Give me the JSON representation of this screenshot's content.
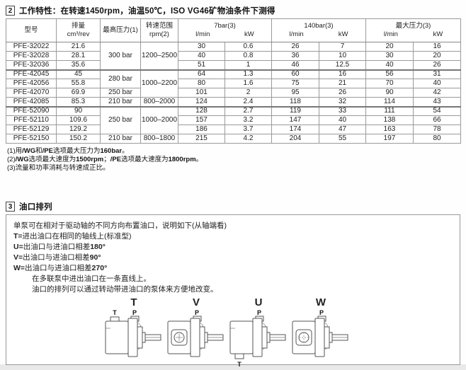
{
  "section2": {
    "number": "2",
    "title": "工作特性：在转速1450rpm，油温50℃，ISO VG46矿物油条件下测得"
  },
  "table": {
    "col_headers": {
      "model": "型号",
      "displacement_line1": "排量",
      "displacement_line2": "cm³/rev",
      "max_pressure": "最高压力(1)",
      "speed_range_line1": "转速范围",
      "speed_range_line2": "rpm(2)",
      "group_7bar": "7bar(3)",
      "group_140bar": "140bar(3)",
      "group_maxp": "最大压力(3)",
      "lmin": "l/min",
      "kw": "kW"
    },
    "rows": [
      {
        "model": "PFE-32022",
        "disp": "21.6",
        "pressure": "300 bar",
        "pressure_span": 3,
        "rpm": "1200–2500",
        "rpm_span": 3,
        "v7": "30",
        "k7": "0.6",
        "v140": "26",
        "k140": "7",
        "vmax": "20",
        "kmax": "16",
        "group_start": false
      },
      {
        "model": "PFE-32028",
        "disp": "28.1",
        "v7": "40",
        "k7": "0.8",
        "v140": "36",
        "k140": "10",
        "vmax": "30",
        "kmax": "20",
        "group_start": false
      },
      {
        "model": "PFE-32036",
        "disp": "35.6",
        "v7": "51",
        "k7": "1",
        "v140": "46",
        "k140": "12.5",
        "vmax": "40",
        "kmax": "26",
        "group_start": false
      },
      {
        "model": "PFE-42045",
        "disp": "45",
        "pressure": "280 bar",
        "pressure_span": 2,
        "rpm": "1000–2200",
        "rpm_span": 3,
        "v7": "64",
        "k7": "1.3",
        "v140": "60",
        "k140": "16",
        "vmax": "56",
        "kmax": "31",
        "group_start": true
      },
      {
        "model": "PFE-42056",
        "disp": "55.8",
        "v7": "80",
        "k7": "1.6",
        "v140": "75",
        "k140": "21",
        "vmax": "70",
        "kmax": "40",
        "group_start": false
      },
      {
        "model": "PFE-42070",
        "disp": "69.9",
        "pressure": "250 bar",
        "pressure_span": 1,
        "v7": "101",
        "k7": "2",
        "v140": "95",
        "k140": "26",
        "vmax": "90",
        "kmax": "42",
        "group_start": false
      },
      {
        "model": "PFE-42085",
        "disp": "85.3",
        "pressure": "210 bar",
        "pressure_span": 1,
        "rpm": "800–2000",
        "rpm_span": 1,
        "v7": "124",
        "k7": "2.4",
        "v140": "118",
        "k140": "32",
        "vmax": "114",
        "kmax": "43",
        "group_start": false
      },
      {
        "model": "PFE-52090",
        "disp": "90",
        "pressure": "250 bar",
        "pressure_span": 3,
        "rpm": "1000–2000",
        "rpm_span": 3,
        "v7": "128",
        "k7": "2.7",
        "v140": "119",
        "k140": "33",
        "vmax": "111",
        "kmax": "54",
        "group_start": true
      },
      {
        "model": "PFE-52110",
        "disp": "109.6",
        "v7": "157",
        "k7": "3.2",
        "v140": "147",
        "k140": "40",
        "vmax": "138",
        "kmax": "66",
        "group_start": false
      },
      {
        "model": "PFE-52129",
        "disp": "129.2",
        "v7": "186",
        "k7": "3.7",
        "v140": "174",
        "k140": "47",
        "vmax": "163",
        "kmax": "78",
        "group_start": false
      },
      {
        "model": "PFE-52150",
        "disp": "150.2",
        "pressure": "210 bar",
        "pressure_span": 1,
        "rpm": "800–1800",
        "rpm_span": 1,
        "v7": "215",
        "k7": "4.2",
        "v140": "204",
        "k140": "55",
        "vmax": "197",
        "kmax": "80",
        "group_start": false
      }
    ]
  },
  "footnotes": [
    [
      {
        "t": "(1)用",
        "b": false
      },
      {
        "t": "/WG",
        "b": true
      },
      {
        "t": "和",
        "b": false
      },
      {
        "t": "/PE",
        "b": true
      },
      {
        "t": "选项最大压力为",
        "b": false
      },
      {
        "t": "160bar",
        "b": true
      },
      {
        "t": "。",
        "b": false
      }
    ],
    [
      {
        "t": "(2)",
        "b": false
      },
      {
        "t": "/WG",
        "b": true
      },
      {
        "t": "选项最大速度为",
        "b": false
      },
      {
        "t": "1500rpm",
        "b": true
      },
      {
        "t": "；",
        "b": false
      },
      {
        "t": "/PE",
        "b": true
      },
      {
        "t": "选项最大速度为",
        "b": false
      },
      {
        "t": "1800rpm",
        "b": true
      },
      {
        "t": "。",
        "b": false
      }
    ],
    [
      {
        "t": "(3)流量和功率消耗与转速成正比。",
        "b": false
      }
    ]
  ],
  "section3": {
    "number": "3",
    "title": "油口排列",
    "intro": "单泵可在相对于驱动轴的不同方向布置油口，说明如下(从轴端看)",
    "port_lines": [
      {
        "code": "T=",
        "text": "进出油口在相同的轴线上(标准型)",
        "angle": ""
      },
      {
        "code": "U=",
        "text": "出油口与进油口相差",
        "angle": "180°"
      },
      {
        "code": "V=",
        "text": "出油口与进油口相差",
        "angle": "90°"
      },
      {
        "code": "W=",
        "text": "出油口与进油口相差",
        "angle": "270°"
      }
    ],
    "extra_lines": [
      "在多联泵中进出油口在一条直线上。",
      "油口的排列可以通过转动带进油口的泵体来方便地改变。"
    ],
    "diagrams": [
      {
        "label": "T",
        "ports": {
          "left_top": "T",
          "right_top": "P"
        }
      },
      {
        "label": "V",
        "ports": {
          "right_top": "P"
        }
      },
      {
        "label": "U",
        "ports": {
          "right_top": "P",
          "bottom": "T"
        }
      },
      {
        "label": "W",
        "ports": {
          "right_top": "P"
        }
      }
    ]
  },
  "colors": {
    "border_outer": "#777777",
    "border_inner": "#9a9a9a",
    "text": "#1a1a1a",
    "page_bg": "#fefefe",
    "outside_bg": "#e9e9e9"
  }
}
